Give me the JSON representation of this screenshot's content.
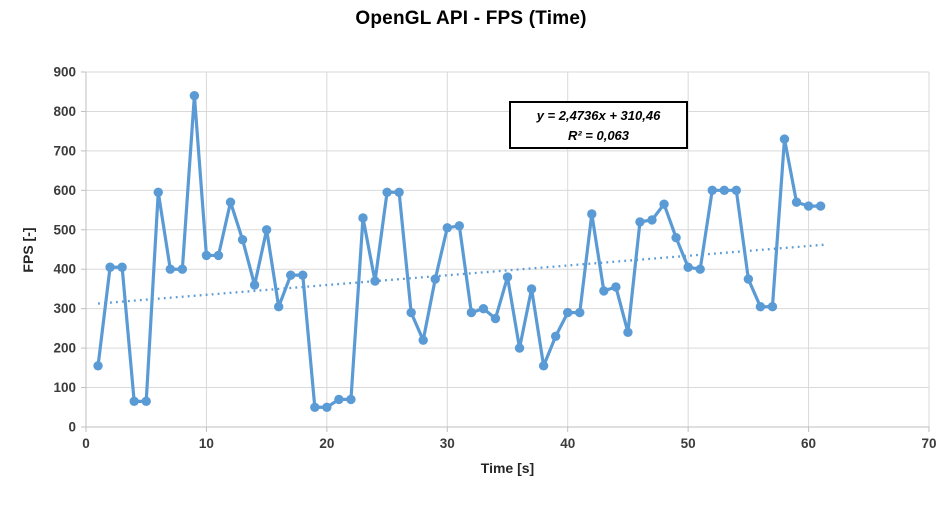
{
  "title": "OpenGL API - FPS (Time)",
  "annotation": {
    "equation": "y = 2,4736x + 310,46",
    "r_squared": "R² = 0,063"
  },
  "colors": {
    "series": "#5B9BD5",
    "trendline": "#5B9BD5",
    "gridline": "#D9D9D9",
    "axis_line": "#BFBFBF",
    "tick_text": "#3b3b3b",
    "title_text": "#000000"
  },
  "chart_data": {
    "type": "line",
    "title": "OpenGL API - FPS (Time)",
    "xlabel": "Time [s]",
    "ylabel": "FPS [-]",
    "xlim": [
      0,
      70
    ],
    "ylim": [
      0,
      900
    ],
    "x_ticks": [
      0,
      10,
      20,
      30,
      40,
      50,
      60,
      70
    ],
    "y_ticks": [
      0,
      100,
      200,
      300,
      400,
      500,
      600,
      700,
      800,
      900
    ],
    "grid": true,
    "legend": "none",
    "marker": "circle",
    "x": [
      1,
      2,
      3,
      4,
      5,
      6,
      7,
      8,
      9,
      10,
      11,
      12,
      13,
      14,
      15,
      16,
      17,
      18,
      19,
      20,
      21,
      22,
      23,
      24,
      25,
      26,
      27,
      28,
      29,
      30,
      31,
      32,
      33,
      34,
      35,
      36,
      37,
      38,
      39,
      40,
      41,
      42,
      43,
      44,
      45,
      46,
      47,
      48,
      49,
      50,
      51,
      52,
      53,
      54,
      55,
      56,
      57,
      58,
      59,
      60,
      61
    ],
    "values": [
      155,
      405,
      405,
      65,
      65,
      595,
      400,
      400,
      840,
      435,
      435,
      570,
      475,
      360,
      500,
      305,
      385,
      385,
      50,
      50,
      70,
      70,
      530,
      370,
      595,
      595,
      290,
      220,
      375,
      505,
      510,
      290,
      300,
      275,
      380,
      200,
      350,
      155,
      230,
      290,
      290,
      540,
      345,
      355,
      240,
      520,
      525,
      565,
      480,
      405,
      400,
      600,
      600,
      600,
      375,
      305,
      305,
      730,
      570,
      560,
      560
    ],
    "trendline": {
      "type": "linear",
      "slope": 2.4736,
      "intercept": 310.46,
      "r_squared": 0.063,
      "equation_label": "y = 2,4736x + 310,46",
      "r2_label": "R² = 0,063",
      "x_range": [
        1,
        61.5
      ],
      "style": "dotted"
    }
  }
}
